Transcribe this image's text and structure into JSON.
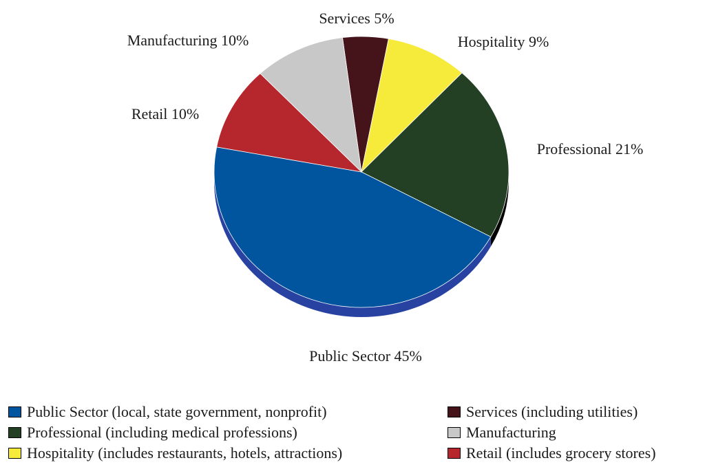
{
  "chart_data": {
    "type": "pie",
    "title": "",
    "slices": [
      {
        "label": "Services 5%",
        "value": 5,
        "color": "#45141A"
      },
      {
        "label": "Hospitality 9%",
        "value": 9,
        "color": "#F6EA3A"
      },
      {
        "label": "Professional 21%",
        "value": 21,
        "color": "#233F24"
      },
      {
        "label": "Public Sector 45%",
        "value": 45,
        "color": "#01559F",
        "side_color": "#2842A2"
      },
      {
        "label": "Retail 10%",
        "value": 10,
        "color": "#B5262D"
      },
      {
        "label": "Manufacturing 10%",
        "value": 10,
        "color": "#C8C8C8"
      }
    ],
    "legend": {
      "placement": "bottom",
      "left": [
        {
          "label": "Public Sector (local, state government, nonprofit)",
          "color": "#01559F"
        },
        {
          "label": "Professional (including medical professions)",
          "color": "#233F24"
        },
        {
          "label": "Hospitality (includes restaurants, hotels, attractions)",
          "color": "#F6EA3A"
        }
      ],
      "right": [
        {
          "label": "Services (including utilities)",
          "color": "#45141A"
        },
        {
          "label": "Manufacturing",
          "color": "#C8C8C8"
        },
        {
          "label": "Retail (includes grocery stores)",
          "color": "#B5262D"
        }
      ]
    }
  }
}
